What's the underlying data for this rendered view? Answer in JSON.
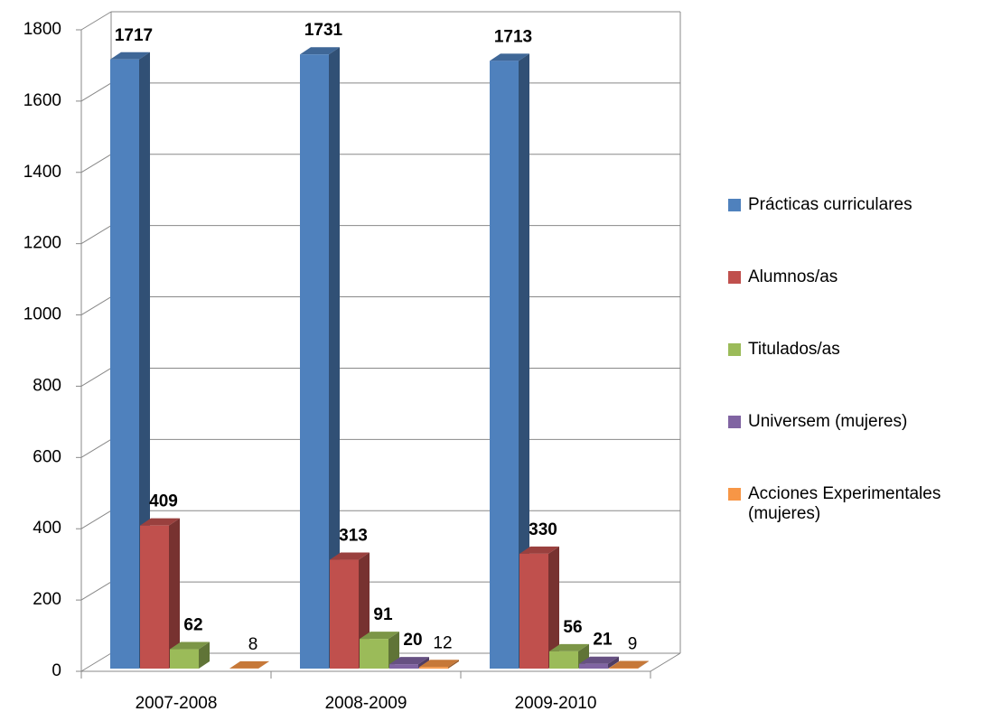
{
  "chart_data": {
    "type": "bar3d",
    "categories": [
      "2007-2008",
      "2008-2009",
      "2009-2010"
    ],
    "series": [
      {
        "name": "Prácticas curriculares",
        "color": "#4f81bd",
        "values": [
          1717,
          1731,
          1713
        ]
      },
      {
        "name": "Alumnos/as",
        "color": "#c0504d",
        "values": [
          409,
          313,
          330
        ]
      },
      {
        "name": "Titulados/as",
        "color": "#9bbb59",
        "values": [
          62,
          91,
          56
        ]
      },
      {
        "name": "Universem (mujeres)",
        "color": "#8064a2",
        "values": [
          null,
          20,
          21
        ]
      },
      {
        "name": "Acciones Experimentales (mujeres)",
        "color": "#f79646",
        "values": [
          8,
          12,
          9
        ]
      }
    ],
    "ylim": [
      0,
      1800
    ],
    "yticks": [
      0,
      200,
      400,
      600,
      800,
      1000,
      1200,
      1400,
      1600,
      1800
    ],
    "grid": true,
    "legend": "right"
  }
}
